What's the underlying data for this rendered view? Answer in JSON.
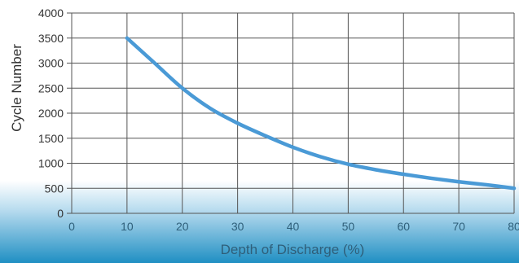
{
  "chart_data": {
    "type": "line",
    "title": "",
    "xlabel": "Depth of Discharge (%)",
    "ylabel": "Cycle Number",
    "xlim": [
      0,
      80
    ],
    "ylim": [
      0,
      4000
    ],
    "x_ticks": [
      0,
      10,
      20,
      30,
      40,
      50,
      60,
      70,
      80
    ],
    "y_ticks": [
      0,
      500,
      1000,
      1500,
      2000,
      2500,
      3000,
      3500,
      4000
    ],
    "grid": true,
    "legend": "none",
    "series": [
      {
        "color": "#4a9ad6",
        "x": [
          10,
          15,
          20,
          25,
          30,
          35,
          40,
          45,
          50,
          55,
          60,
          65,
          70,
          75,
          80
        ],
        "y": [
          3500,
          3000,
          2500,
          2100,
          1800,
          1550,
          1320,
          1130,
          980,
          870,
          780,
          700,
          630,
          570,
          500
        ]
      }
    ]
  },
  "colors": {
    "line": "#4a9ad6",
    "grid": "#555555",
    "band_top": "#ffffff",
    "band_bottom": "#1f8fc3",
    "xlabel_text": "#2f5f7a"
  }
}
